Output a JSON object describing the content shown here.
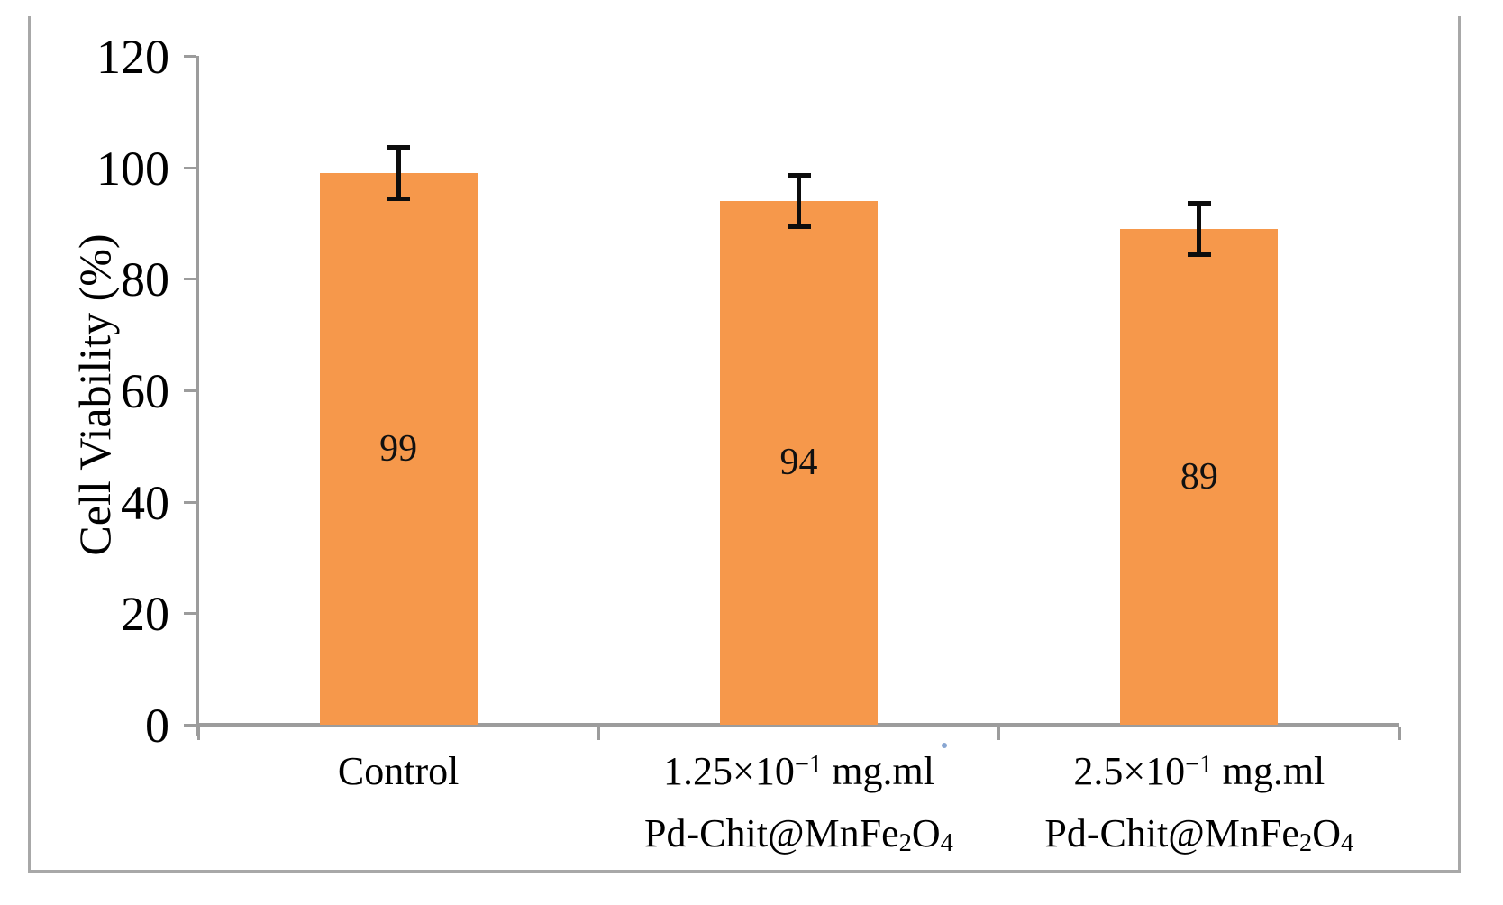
{
  "chart_data": {
    "type": "bar",
    "title": "",
    "xlabel": "",
    "ylabel": "Cell Viability (%)",
    "ylim": [
      0,
      120
    ],
    "yticks": [
      0,
      20,
      40,
      60,
      80,
      100,
      120
    ],
    "grid": false,
    "legend_position": "none",
    "bar_color": "#f6984b",
    "error_bar_color": "#0d0d0d",
    "axis_color": "#9c9c9c",
    "frame_color": "#a8a8a8",
    "categories": [
      "Control",
      "1.25×10−1 mg.ml Pd-Chit@MnFe2O4",
      "2.5×10−1 mg.ml Pd-Chit@MnFe2O4"
    ],
    "category_labels_rich": [
      {
        "lines": [
          [
            {
              "t": "Control"
            }
          ]
        ]
      },
      {
        "lines": [
          [
            {
              "t": "1.25×10"
            },
            {
              "t": "−1",
              "style": "sup"
            },
            {
              "t": " mg.ml"
            }
          ],
          [
            {
              "t": "Pd-Chit@MnFe"
            },
            {
              "t": "2",
              "style": "sub"
            },
            {
              "t": "O"
            },
            {
              "t": "4",
              "style": "sub"
            }
          ]
        ]
      },
      {
        "lines": [
          [
            {
              "t": "2.5×10"
            },
            {
              "t": "−1",
              "style": "sup"
            },
            {
              "t": " mg.ml"
            }
          ],
          [
            {
              "t": "Pd-Chit@MnFe"
            },
            {
              "t": "2",
              "style": "sub"
            },
            {
              "t": "O"
            },
            {
              "t": "4",
              "style": "sub"
            }
          ]
        ]
      }
    ],
    "series": [
      {
        "name": "Cell Viability (%)",
        "values": [
          99,
          94,
          89
        ],
        "errors": [
          5,
          5,
          5
        ],
        "value_labels": [
          "99",
          "94",
          "89"
        ]
      }
    ]
  }
}
